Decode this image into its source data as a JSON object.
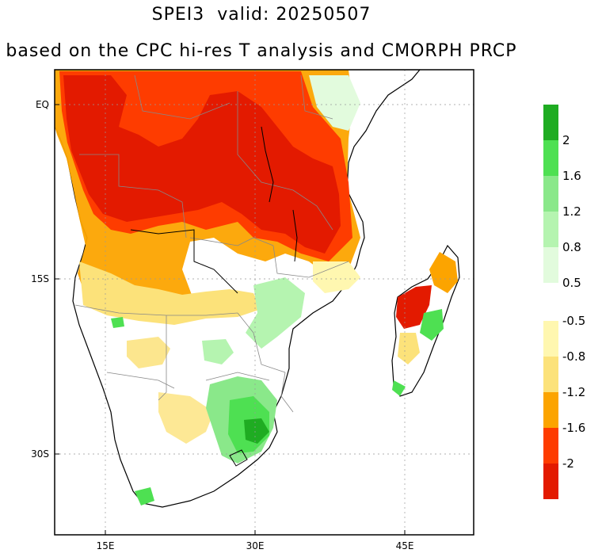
{
  "title": "SPEI3  valid: 20250507",
  "subtitle": "based on the CPC hi-res T analysis and CMORPH PRCP",
  "map": {
    "lon_ticks": [
      "15E",
      "30E",
      "45E"
    ],
    "lat_ticks": [
      "EQ",
      "15S",
      "30S"
    ],
    "grid": true
  },
  "colorbar": {
    "wet": [
      {
        "color": "#1fac22",
        "label": ""
      },
      {
        "color": "#4ee052",
        "label": "2"
      },
      {
        "color": "#8ae88a",
        "label": "1.6"
      },
      {
        "color": "#b5f4b0",
        "label": "1.2"
      },
      {
        "color": "#e2fbdd",
        "label": "0.8"
      }
    ],
    "wet_bottom_label": "0.5",
    "dry": [
      {
        "color": "#fff7b0",
        "label": "-0.5"
      },
      {
        "color": "#fce27a",
        "label": "-0.8"
      },
      {
        "color": "#fca400",
        "label": "-1.2"
      },
      {
        "color": "#fe3c00",
        "label": "-1.6"
      },
      {
        "color": "#e31a00",
        "label": "-2"
      }
    ],
    "colors": {
      "white": "#ffffff",
      "ocean": "#ffffff"
    }
  }
}
